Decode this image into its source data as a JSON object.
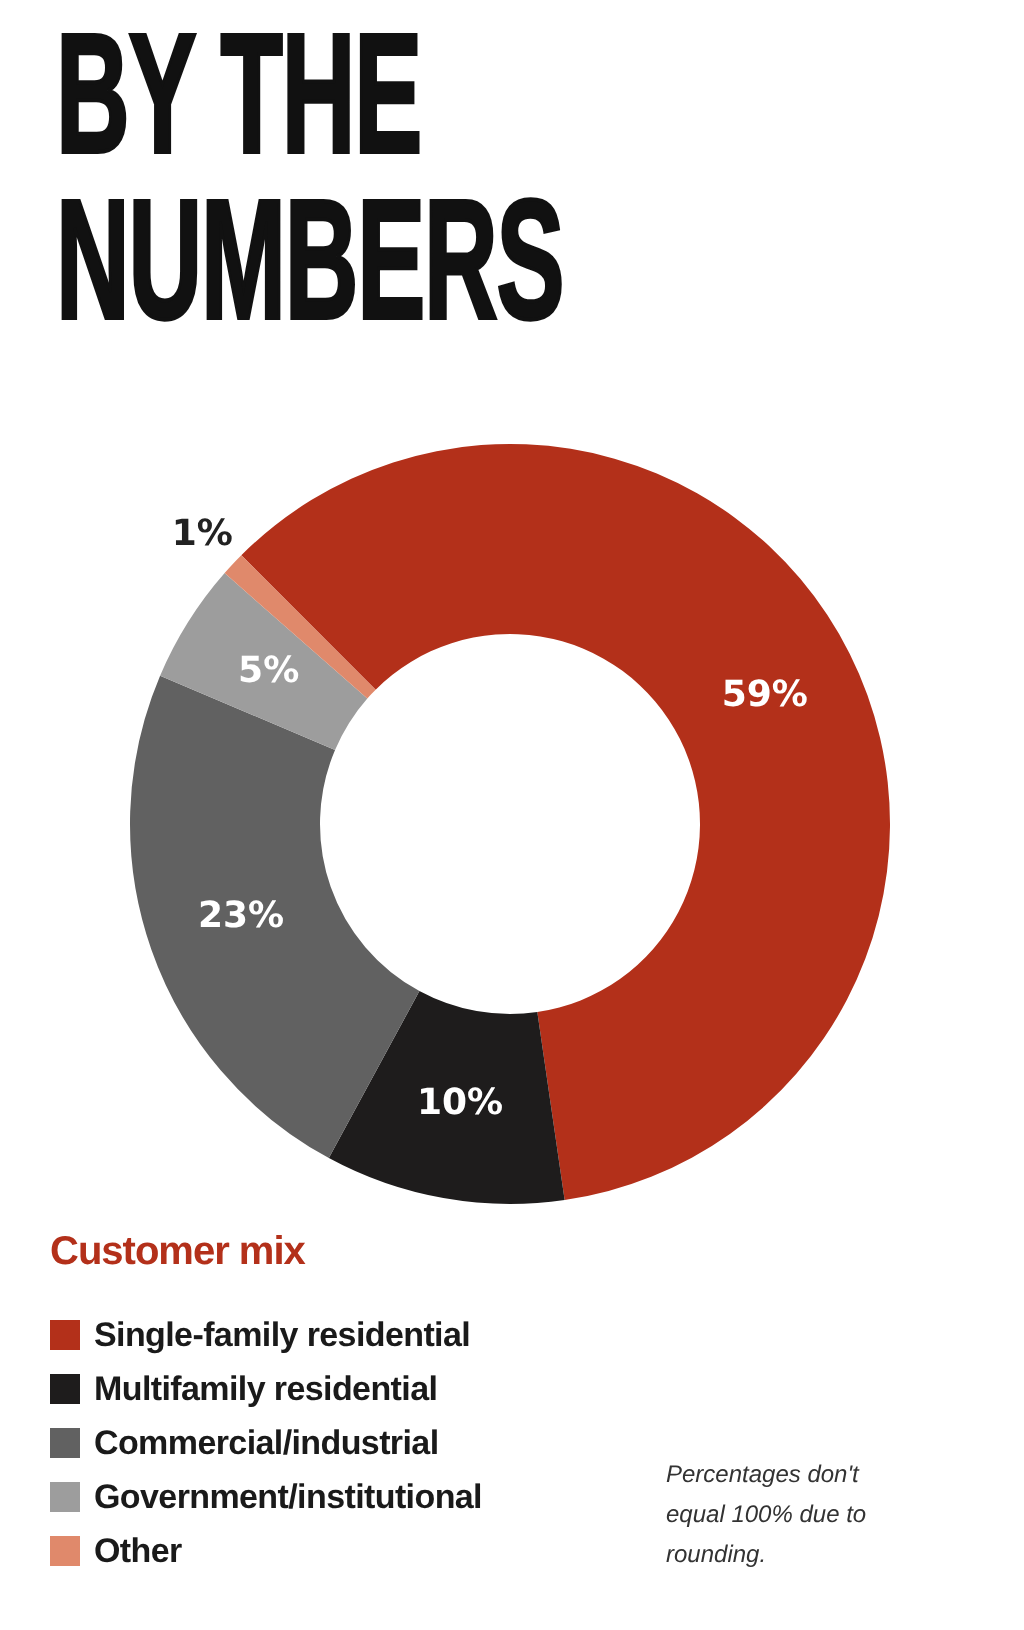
{
  "chart_data": {
    "type": "donut",
    "title": "BY THE NUMBERS",
    "legend_title": "Customer mix",
    "categories": [
      "Single-family residential",
      "Multifamily residential",
      "Commercial/industrial",
      "Government/institutional",
      "Other"
    ],
    "values": [
      59,
      10,
      23,
      5,
      1
    ],
    "colors": [
      "#b3301a",
      "#1e1c1c",
      "#616161",
      "#9d9d9d",
      "#e0896b"
    ],
    "value_labels": [
      "59%",
      "10%",
      "23%",
      "5%",
      "1%"
    ],
    "legend": "bottom left",
    "annotations": [
      "Percentages don't equal 100% due to rounding."
    ]
  }
}
